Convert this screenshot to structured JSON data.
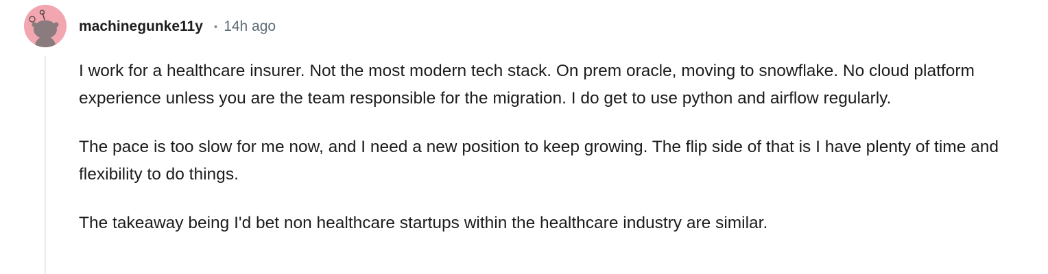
{
  "comment": {
    "username": "machinegunke11y",
    "separator": "•",
    "timestamp": "14h ago",
    "avatar_icon": "snoo-avatar-icon",
    "avatar_color": "#f2a7b0",
    "paragraphs": [
      "I work for a healthcare insurer. Not the most modern tech stack. On prem oracle, moving to snowflake. No cloud platform experience unless you are the team responsible for the migration. I do get to use python and airflow regularly.",
      "The pace is too slow for me now, and I need a new position to keep growing. The flip side of that is I have plenty of time and flexibility to do things.",
      "The takeaway being I'd bet non healthcare startups within the healthcare industry are similar."
    ]
  }
}
